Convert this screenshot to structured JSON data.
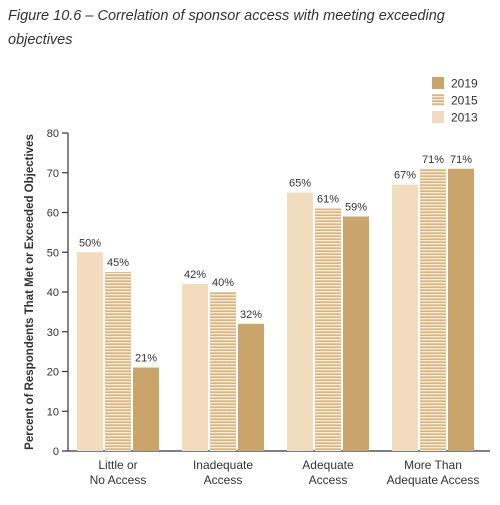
{
  "figure_title": "Figure 10.6 – Correlation of sponsor access with meeting exceeding objectives",
  "colors": {
    "s2013": "#f2dcc0",
    "s2015": "#d9b47c",
    "s2015_stripe": "#f6ead8",
    "s2019": "#c9a56c",
    "axis": "#333333",
    "text": "#333333"
  },
  "chart_data": {
    "type": "bar",
    "title": "Figure 10.6 – Correlation of sponsor access with meeting exceeding objectives",
    "ylabel": "Percent of Respondents That Met or Exceeded Objectives",
    "xlabel": "",
    "ylim": [
      0,
      80
    ],
    "yticks": [
      0,
      10,
      20,
      30,
      40,
      50,
      60,
      70,
      80
    ],
    "grid": false,
    "legend_position": "top-right",
    "legend_order": [
      "2019",
      "2015",
      "2013"
    ],
    "categories": [
      [
        "Little or",
        "No Access"
      ],
      [
        "Inadequate",
        "Access"
      ],
      [
        "Adequate",
        "Access"
      ],
      [
        "More Than",
        "Adequate Access"
      ]
    ],
    "series": [
      {
        "name": "2013",
        "values": [
          50,
          42,
          65,
          67
        ],
        "labels": [
          "50%",
          "42%",
          "65%",
          "67%"
        ]
      },
      {
        "name": "2015",
        "values": [
          45,
          40,
          61,
          71
        ],
        "labels": [
          "45%",
          "40%",
          "61%",
          "71%"
        ]
      },
      {
        "name": "2019",
        "values": [
          21,
          32,
          59,
          71
        ],
        "labels": [
          "21%",
          "32%",
          "59%",
          "71%"
        ]
      }
    ]
  }
}
